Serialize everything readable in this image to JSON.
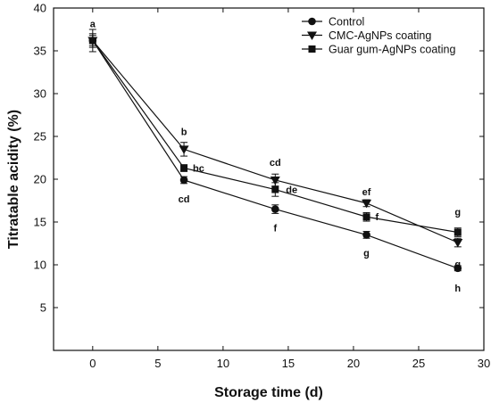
{
  "chart_data": {
    "type": "line",
    "xlabel": "Storage time (d)",
    "ylabel": "Titratable acidity (%)",
    "xlim": [
      -3,
      30
    ],
    "ylim": [
      0,
      40
    ],
    "x_ticks": [
      "0",
      "5",
      "10",
      "15",
      "20",
      "25",
      "30"
    ],
    "y_ticks": [
      "5",
      "10",
      "15",
      "20",
      "25",
      "30",
      "35",
      "40"
    ],
    "grid": false,
    "legend_position": "top-right",
    "series": [
      {
        "name": "Control",
        "marker": "circle",
        "x": [
          0,
          7,
          14,
          21,
          28
        ],
        "values": [
          36.2,
          19.9,
          16.5,
          13.5,
          9.6
        ],
        "errors": [
          1.3,
          0.4,
          0.5,
          0.4,
          0.3
        ],
        "labels": [
          "a",
          "cd",
          "f",
          "g",
          "h"
        ]
      },
      {
        "name": "CMC-AgNPs coating",
        "marker": "triangle-down",
        "x": [
          0,
          7,
          14,
          21,
          28
        ],
        "values": [
          36.2,
          23.5,
          19.9,
          17.2,
          12.6
        ],
        "errors": [
          0.8,
          0.8,
          0.7,
          0.4,
          0.5
        ],
        "labels": [
          "",
          "b",
          "cd",
          "ef",
          "g"
        ]
      },
      {
        "name": "Guar gum-AgNPs coating",
        "marker": "square",
        "x": [
          0,
          7,
          14,
          21,
          28
        ],
        "values": [
          36.2,
          21.3,
          18.8,
          15.6,
          13.8
        ],
        "errors": [
          0.6,
          0.4,
          0.8,
          0.5,
          0.5
        ],
        "labels": [
          "",
          "bc",
          "de",
          "f",
          "g"
        ]
      }
    ]
  }
}
